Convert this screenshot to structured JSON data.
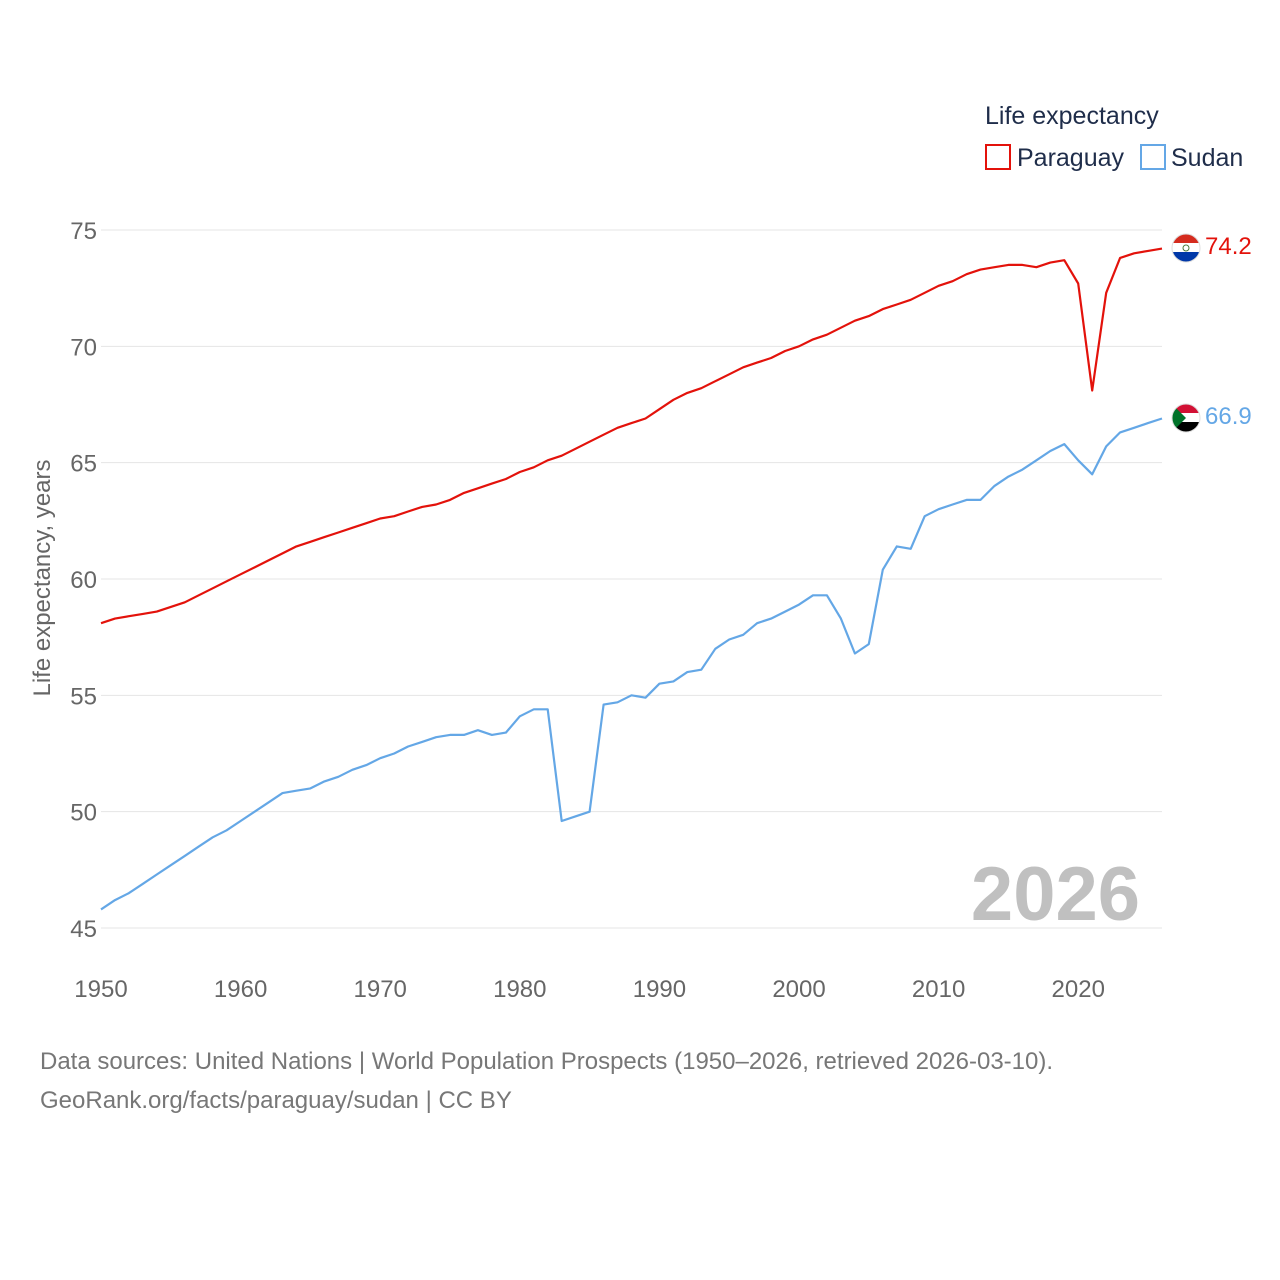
{
  "chart_data": {
    "type": "line",
    "legend_title": "Life expectancy",
    "ylabel": "Life expectancy, years",
    "xlabel": "",
    "xlim": [
      1950,
      2026
    ],
    "ylim": [
      45,
      75
    ],
    "x_ticks": [
      1950,
      1960,
      1970,
      1980,
      1990,
      2000,
      2010,
      2020
    ],
    "y_ticks": [
      45,
      50,
      55,
      60,
      65,
      70,
      75
    ],
    "year_label": "2026",
    "x": [
      1950,
      1951,
      1952,
      1953,
      1954,
      1955,
      1956,
      1957,
      1958,
      1959,
      1960,
      1961,
      1962,
      1963,
      1964,
      1965,
      1966,
      1967,
      1968,
      1969,
      1970,
      1971,
      1972,
      1973,
      1974,
      1975,
      1976,
      1977,
      1978,
      1979,
      1980,
      1981,
      1982,
      1983,
      1984,
      1985,
      1986,
      1987,
      1988,
      1989,
      1990,
      1991,
      1992,
      1993,
      1994,
      1995,
      1996,
      1997,
      1998,
      1999,
      2000,
      2001,
      2002,
      2003,
      2004,
      2005,
      2006,
      2007,
      2008,
      2009,
      2010,
      2011,
      2012,
      2013,
      2014,
      2015,
      2016,
      2017,
      2018,
      2019,
      2020,
      2021,
      2022,
      2023,
      2024,
      2025,
      2026
    ],
    "series": [
      {
        "name": "Paraguay",
        "color": "#e3120b",
        "end_label": "74.2",
        "values": [
          58.1,
          58.3,
          58.4,
          58.5,
          58.6,
          58.8,
          59.0,
          59.3,
          59.6,
          59.9,
          60.2,
          60.5,
          60.8,
          61.1,
          61.4,
          61.6,
          61.8,
          62.0,
          62.2,
          62.4,
          62.6,
          62.7,
          62.9,
          63.1,
          63.2,
          63.4,
          63.7,
          63.9,
          64.1,
          64.3,
          64.6,
          64.8,
          65.1,
          65.3,
          65.6,
          65.9,
          66.2,
          66.5,
          66.7,
          66.9,
          67.3,
          67.7,
          68.0,
          68.2,
          68.5,
          68.8,
          69.1,
          69.3,
          69.5,
          69.8,
          70.0,
          70.3,
          70.5,
          70.8,
          71.1,
          71.3,
          71.6,
          71.8,
          72.0,
          72.3,
          72.6,
          72.8,
          73.1,
          73.3,
          73.4,
          73.5,
          73.5,
          73.4,
          73.6,
          73.7,
          72.7,
          68.1,
          72.3,
          73.8,
          74.0,
          74.1,
          74.2
        ]
      },
      {
        "name": "Sudan",
        "color": "#64a7e6",
        "end_label": "66.9",
        "values": [
          45.8,
          46.2,
          46.5,
          46.9,
          47.3,
          47.7,
          48.1,
          48.5,
          48.9,
          49.2,
          49.6,
          50.0,
          50.4,
          50.8,
          50.9,
          51.0,
          51.3,
          51.5,
          51.8,
          52.0,
          52.3,
          52.5,
          52.8,
          53.0,
          53.2,
          53.3,
          53.3,
          53.5,
          53.3,
          53.4,
          54.1,
          54.4,
          54.4,
          49.6,
          49.8,
          50.0,
          54.6,
          54.7,
          55.0,
          54.9,
          55.5,
          55.6,
          56.0,
          56.1,
          57.0,
          57.4,
          57.6,
          58.1,
          58.3,
          58.6,
          58.9,
          59.3,
          59.3,
          58.3,
          56.8,
          57.2,
          60.4,
          61.4,
          61.3,
          62.7,
          63.0,
          63.2,
          63.4,
          63.4,
          64.0,
          64.4,
          64.7,
          65.1,
          65.5,
          65.8,
          65.1,
          64.5,
          65.7,
          66.3,
          66.5,
          66.7,
          66.9
        ]
      }
    ]
  },
  "footer": {
    "line1": "Data sources: United Nations | World Population Prospects (1950–2026, retrieved 2026-03-10).",
    "line2": "GeoRank.org/facts/paraguay/sudan | CC BY"
  }
}
